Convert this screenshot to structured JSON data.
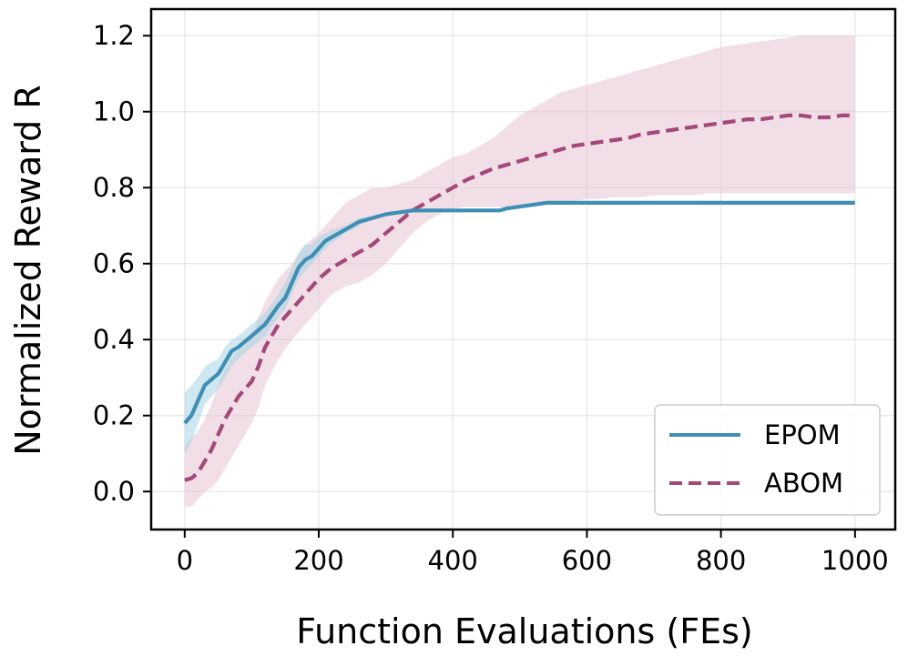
{
  "chart_data": {
    "type": "line",
    "title": "",
    "xlabel": "Function Evaluations (FEs)",
    "ylabel": "Normalized Reward R",
    "xlim": [
      -50,
      1060
    ],
    "ylim": [
      -0.1,
      1.27
    ],
    "xticks": [
      0,
      200,
      400,
      600,
      800,
      1000
    ],
    "yticks": [
      0.0,
      0.2,
      0.4,
      0.6,
      0.8,
      1.0,
      1.2
    ],
    "xtick_labels": [
      "0",
      "200",
      "400",
      "600",
      "800",
      "1000"
    ],
    "ytick_labels": [
      "0.0",
      "0.2",
      "0.4",
      "0.6",
      "0.8",
      "1.0",
      "1.2"
    ],
    "grid": true,
    "legend_position": "bottom-right",
    "series": [
      {
        "name": "EPOM",
        "color": "#3f8fb5",
        "style": "solid",
        "band_color": "#a8d3e3",
        "x": [
          0,
          10,
          20,
          30,
          50,
          60,
          70,
          80,
          100,
          120,
          140,
          150,
          160,
          170,
          180,
          190,
          200,
          210,
          220,
          240,
          260,
          280,
          300,
          320,
          340,
          360,
          400,
          440,
          470,
          480,
          500,
          520,
          540,
          560,
          600,
          700,
          800,
          900,
          1000
        ],
        "y": [
          0.18,
          0.2,
          0.24,
          0.28,
          0.31,
          0.34,
          0.37,
          0.38,
          0.41,
          0.44,
          0.49,
          0.51,
          0.55,
          0.59,
          0.61,
          0.62,
          0.64,
          0.66,
          0.67,
          0.69,
          0.71,
          0.72,
          0.73,
          0.735,
          0.74,
          0.74,
          0.74,
          0.74,
          0.74,
          0.745,
          0.75,
          0.755,
          0.76,
          0.76,
          0.76,
          0.76,
          0.76,
          0.76,
          0.76
        ],
        "lower": [
          0.1,
          0.13,
          0.18,
          0.23,
          0.27,
          0.3,
          0.33,
          0.35,
          0.38,
          0.41,
          0.46,
          0.48,
          0.52,
          0.56,
          0.58,
          0.6,
          0.62,
          0.64,
          0.655,
          0.68,
          0.7,
          0.715,
          0.725,
          0.73,
          0.735,
          0.735,
          0.74,
          0.74,
          0.74,
          0.745,
          0.75,
          0.755,
          0.755,
          0.76,
          0.76,
          0.76,
          0.76,
          0.76,
          0.76
        ],
        "upper": [
          0.26,
          0.28,
          0.3,
          0.33,
          0.35,
          0.38,
          0.4,
          0.41,
          0.44,
          0.47,
          0.52,
          0.55,
          0.59,
          0.63,
          0.65,
          0.65,
          0.67,
          0.68,
          0.69,
          0.7,
          0.72,
          0.725,
          0.735,
          0.74,
          0.745,
          0.745,
          0.745,
          0.745,
          0.745,
          0.75,
          0.755,
          0.76,
          0.765,
          0.765,
          0.765,
          0.765,
          0.765,
          0.765,
          0.765
        ]
      },
      {
        "name": "ABOM",
        "color": "#a2487a",
        "style": "dashed",
        "band_color": "#e6c3d1",
        "x": [
          0,
          10,
          20,
          30,
          40,
          50,
          60,
          70,
          80,
          90,
          100,
          110,
          120,
          140,
          160,
          180,
          200,
          220,
          240,
          260,
          280,
          300,
          320,
          340,
          360,
          380,
          400,
          420,
          440,
          460,
          480,
          500,
          520,
          540,
          560,
          580,
          600,
          620,
          640,
          660,
          680,
          700,
          720,
          740,
          760,
          780,
          800,
          820,
          840,
          860,
          880,
          900,
          920,
          940,
          960,
          980,
          1000
        ],
        "y": [
          0.03,
          0.035,
          0.05,
          0.08,
          0.11,
          0.15,
          0.19,
          0.22,
          0.25,
          0.27,
          0.29,
          0.33,
          0.38,
          0.44,
          0.48,
          0.52,
          0.56,
          0.59,
          0.61,
          0.63,
          0.65,
          0.68,
          0.71,
          0.74,
          0.76,
          0.78,
          0.8,
          0.82,
          0.835,
          0.85,
          0.86,
          0.87,
          0.88,
          0.89,
          0.9,
          0.91,
          0.915,
          0.92,
          0.925,
          0.93,
          0.94,
          0.945,
          0.95,
          0.955,
          0.96,
          0.965,
          0.97,
          0.975,
          0.98,
          0.98,
          0.985,
          0.99,
          0.99,
          0.985,
          0.985,
          0.99,
          0.99
        ],
        "lower": [
          -0.04,
          -0.04,
          -0.02,
          0.0,
          0.01,
          0.03,
          0.06,
          0.09,
          0.12,
          0.15,
          0.18,
          0.22,
          0.28,
          0.35,
          0.4,
          0.44,
          0.48,
          0.52,
          0.54,
          0.55,
          0.57,
          0.6,
          0.64,
          0.68,
          0.71,
          0.73,
          0.745,
          0.75,
          0.75,
          0.75,
          0.75,
          0.75,
          0.75,
          0.755,
          0.76,
          0.765,
          0.77,
          0.77,
          0.775,
          0.775,
          0.775,
          0.78,
          0.78,
          0.78,
          0.78,
          0.785,
          0.785,
          0.785,
          0.785,
          0.785,
          0.785,
          0.785,
          0.785,
          0.785,
          0.785,
          0.785,
          0.785
        ],
        "upper": [
          0.12,
          0.14,
          0.16,
          0.19,
          0.23,
          0.28,
          0.32,
          0.35,
          0.37,
          0.38,
          0.41,
          0.46,
          0.5,
          0.56,
          0.6,
          0.65,
          0.68,
          0.72,
          0.76,
          0.78,
          0.8,
          0.8,
          0.81,
          0.82,
          0.84,
          0.86,
          0.88,
          0.89,
          0.91,
          0.93,
          0.96,
          0.99,
          1.01,
          1.03,
          1.05,
          1.06,
          1.07,
          1.08,
          1.09,
          1.1,
          1.11,
          1.12,
          1.13,
          1.14,
          1.15,
          1.16,
          1.17,
          1.175,
          1.18,
          1.185,
          1.19,
          1.195,
          1.2,
          1.2,
          1.2,
          1.2,
          1.2
        ]
      }
    ]
  }
}
